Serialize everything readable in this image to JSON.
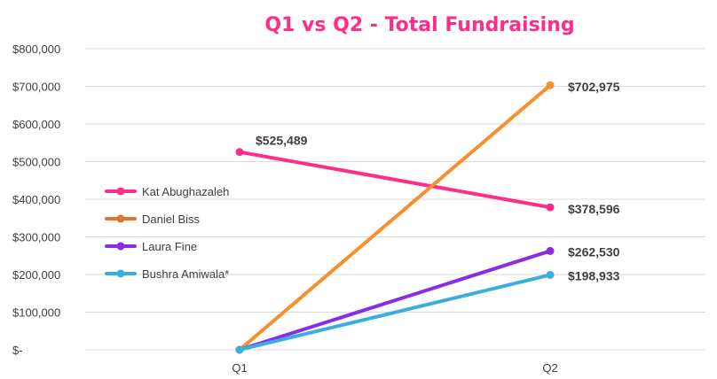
{
  "chart_data": {
    "type": "line",
    "title": "Q1 vs Q2 - Total Fundraising",
    "categories": [
      "Q1",
      "Q2"
    ],
    "ylim": [
      0,
      800000
    ],
    "y_ticks": [
      0,
      100000,
      200000,
      300000,
      400000,
      500000,
      600000,
      700000,
      800000
    ],
    "y_tick_labels": [
      "$-",
      "$100,000",
      "$200,000",
      "$300,000",
      "$400,000",
      "$500,000",
      "$600,000",
      "$700,000",
      "$800,000"
    ],
    "grid": true,
    "legend": "left-middle",
    "series": [
      {
        "name": "Kat Abughazaleh",
        "color": "#FF2D8A",
        "values": [
          525489,
          378596
        ],
        "labels": [
          "$525,489",
          "$378,596"
        ]
      },
      {
        "name": "Daniel Biss",
        "color": "#F7902A",
        "values": [
          0,
          702975
        ],
        "labels": [
          null,
          "$702,975"
        ]
      },
      {
        "name": "Laura Fine",
        "color": "#8A2BE8",
        "values": [
          0,
          262530
        ],
        "labels": [
          null,
          "$262,530"
        ]
      },
      {
        "name": "Bushra Amiwala*",
        "color": "#3BAEE0",
        "values": [
          0,
          198933
        ],
        "labels": [
          null,
          "$198,933"
        ]
      }
    ],
    "legend_marker_colors": [
      "#FF2D8A",
      "#E0752A",
      "#8A2BE8",
      "#3BAEE0"
    ],
    "title_color": "#FF2D8A"
  }
}
